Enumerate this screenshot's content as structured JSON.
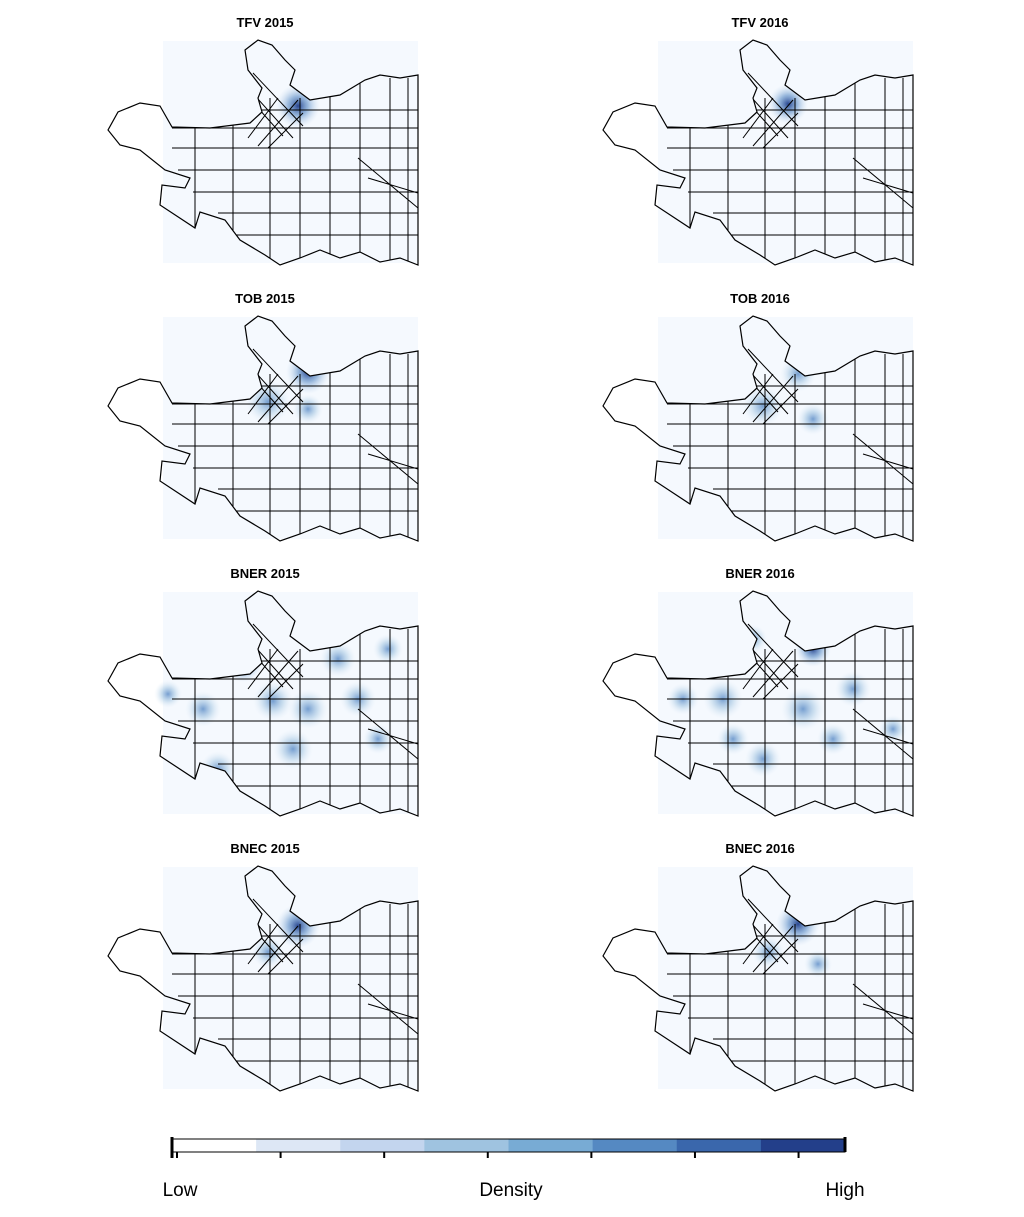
{
  "panels": [
    {
      "title": "TFV 2015"
    },
    {
      "title": "TFV 2016"
    },
    {
      "title": "TOB 2015"
    },
    {
      "title": "TOB 2016"
    },
    {
      "title": "BNER 2015"
    },
    {
      "title": "BNER 2016"
    },
    {
      "title": "BNEC 2015"
    },
    {
      "title": "BNEC 2016"
    }
  ],
  "legend": {
    "low": "Low",
    "label": "Density",
    "high": "High",
    "colors": [
      "#ffffff",
      "#dde7f5",
      "#c3d5ee",
      "#9fc3e0",
      "#78abd4",
      "#5589c2",
      "#3a67ac",
      "#233f8a"
    ]
  }
}
